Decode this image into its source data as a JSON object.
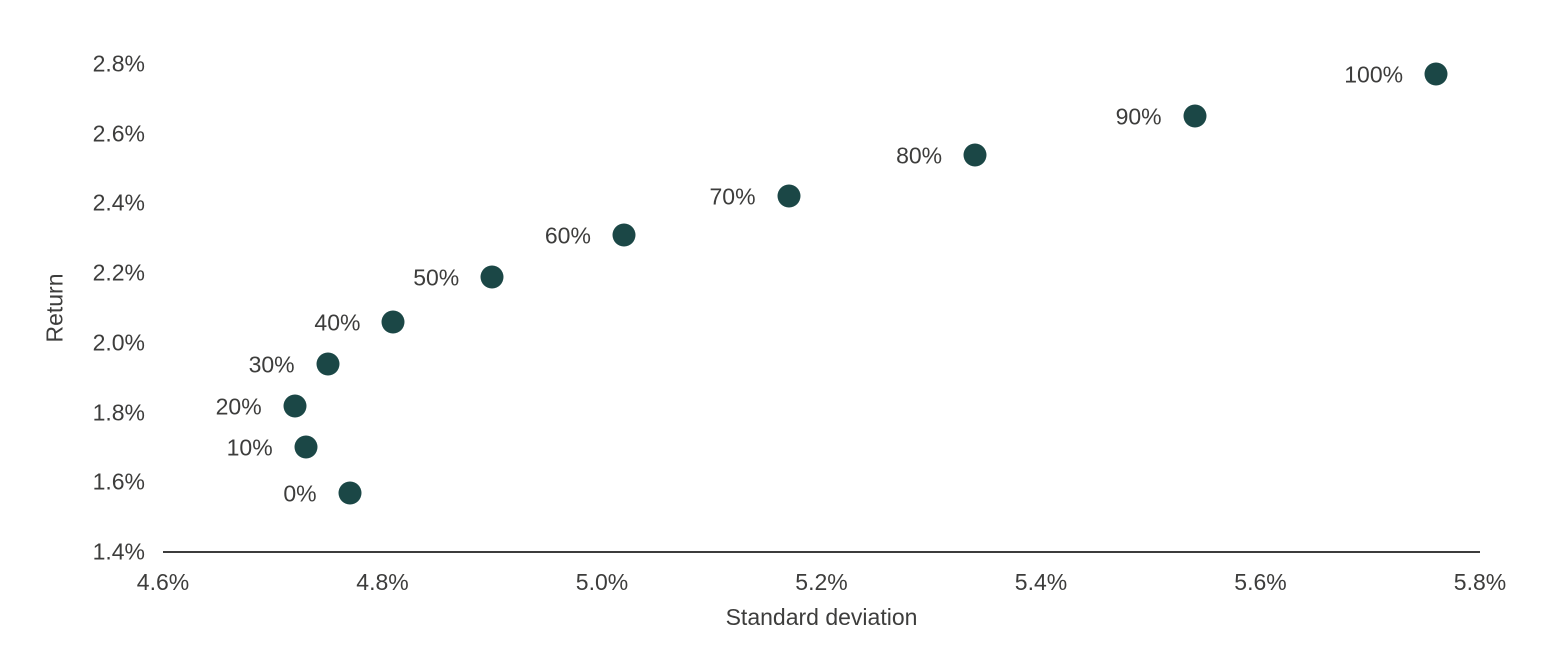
{
  "page": {
    "background": "#ffffff"
  },
  "chart_data": {
    "type": "scatter",
    "title": "",
    "xlabel": "Standard deviation",
    "ylabel": "Return",
    "xlim": [
      4.6,
      5.8
    ],
    "ylim": [
      1.4,
      2.8
    ],
    "grid": false,
    "legend_position": "none",
    "x_tick_format": "percent-1dp",
    "y_tick_format": "percent-1dp",
    "x_ticks": [
      {
        "value": 4.6,
        "label": "4.6%"
      },
      {
        "value": 4.8,
        "label": "4.8%"
      },
      {
        "value": 5.0,
        "label": "5.0%"
      },
      {
        "value": 5.2,
        "label": "5.2%"
      },
      {
        "value": 5.4,
        "label": "5.4%"
      },
      {
        "value": 5.6,
        "label": "5.6%"
      },
      {
        "value": 5.8,
        "label": "5.8%"
      }
    ],
    "y_ticks": [
      {
        "value": 1.4,
        "label": "1.4%"
      },
      {
        "value": 1.6,
        "label": "1.6%"
      },
      {
        "value": 1.8,
        "label": "1.8%"
      },
      {
        "value": 2.0,
        "label": "2.0%"
      },
      {
        "value": 2.2,
        "label": "2.2%"
      },
      {
        "value": 2.4,
        "label": "2.4%"
      },
      {
        "value": 2.6,
        "label": "2.6%"
      },
      {
        "value": 2.8,
        "label": "2.8%"
      }
    ],
    "series": [
      {
        "name": "allocation-points",
        "points": [
          {
            "label": "0%",
            "x": 4.77,
            "y": 1.57
          },
          {
            "label": "10%",
            "x": 4.73,
            "y": 1.7
          },
          {
            "label": "20%",
            "x": 4.72,
            "y": 1.82
          },
          {
            "label": "30%",
            "x": 4.75,
            "y": 1.94
          },
          {
            "label": "40%",
            "x": 4.81,
            "y": 2.06
          },
          {
            "label": "50%",
            "x": 4.9,
            "y": 2.19
          },
          {
            "label": "60%",
            "x": 5.02,
            "y": 2.31
          },
          {
            "label": "70%",
            "x": 5.17,
            "y": 2.42
          },
          {
            "label": "80%",
            "x": 5.34,
            "y": 2.54
          },
          {
            "label": "90%",
            "x": 5.54,
            "y": 2.65
          },
          {
            "label": "100%",
            "x": 5.76,
            "y": 2.77
          }
        ]
      }
    ],
    "colors": {
      "marker": "#1b4746",
      "text": "#3d3d3c",
      "axis_line": "#3c3c3c"
    },
    "marker_diameter_px": 23,
    "point_label_position": "left-of-marker"
  }
}
